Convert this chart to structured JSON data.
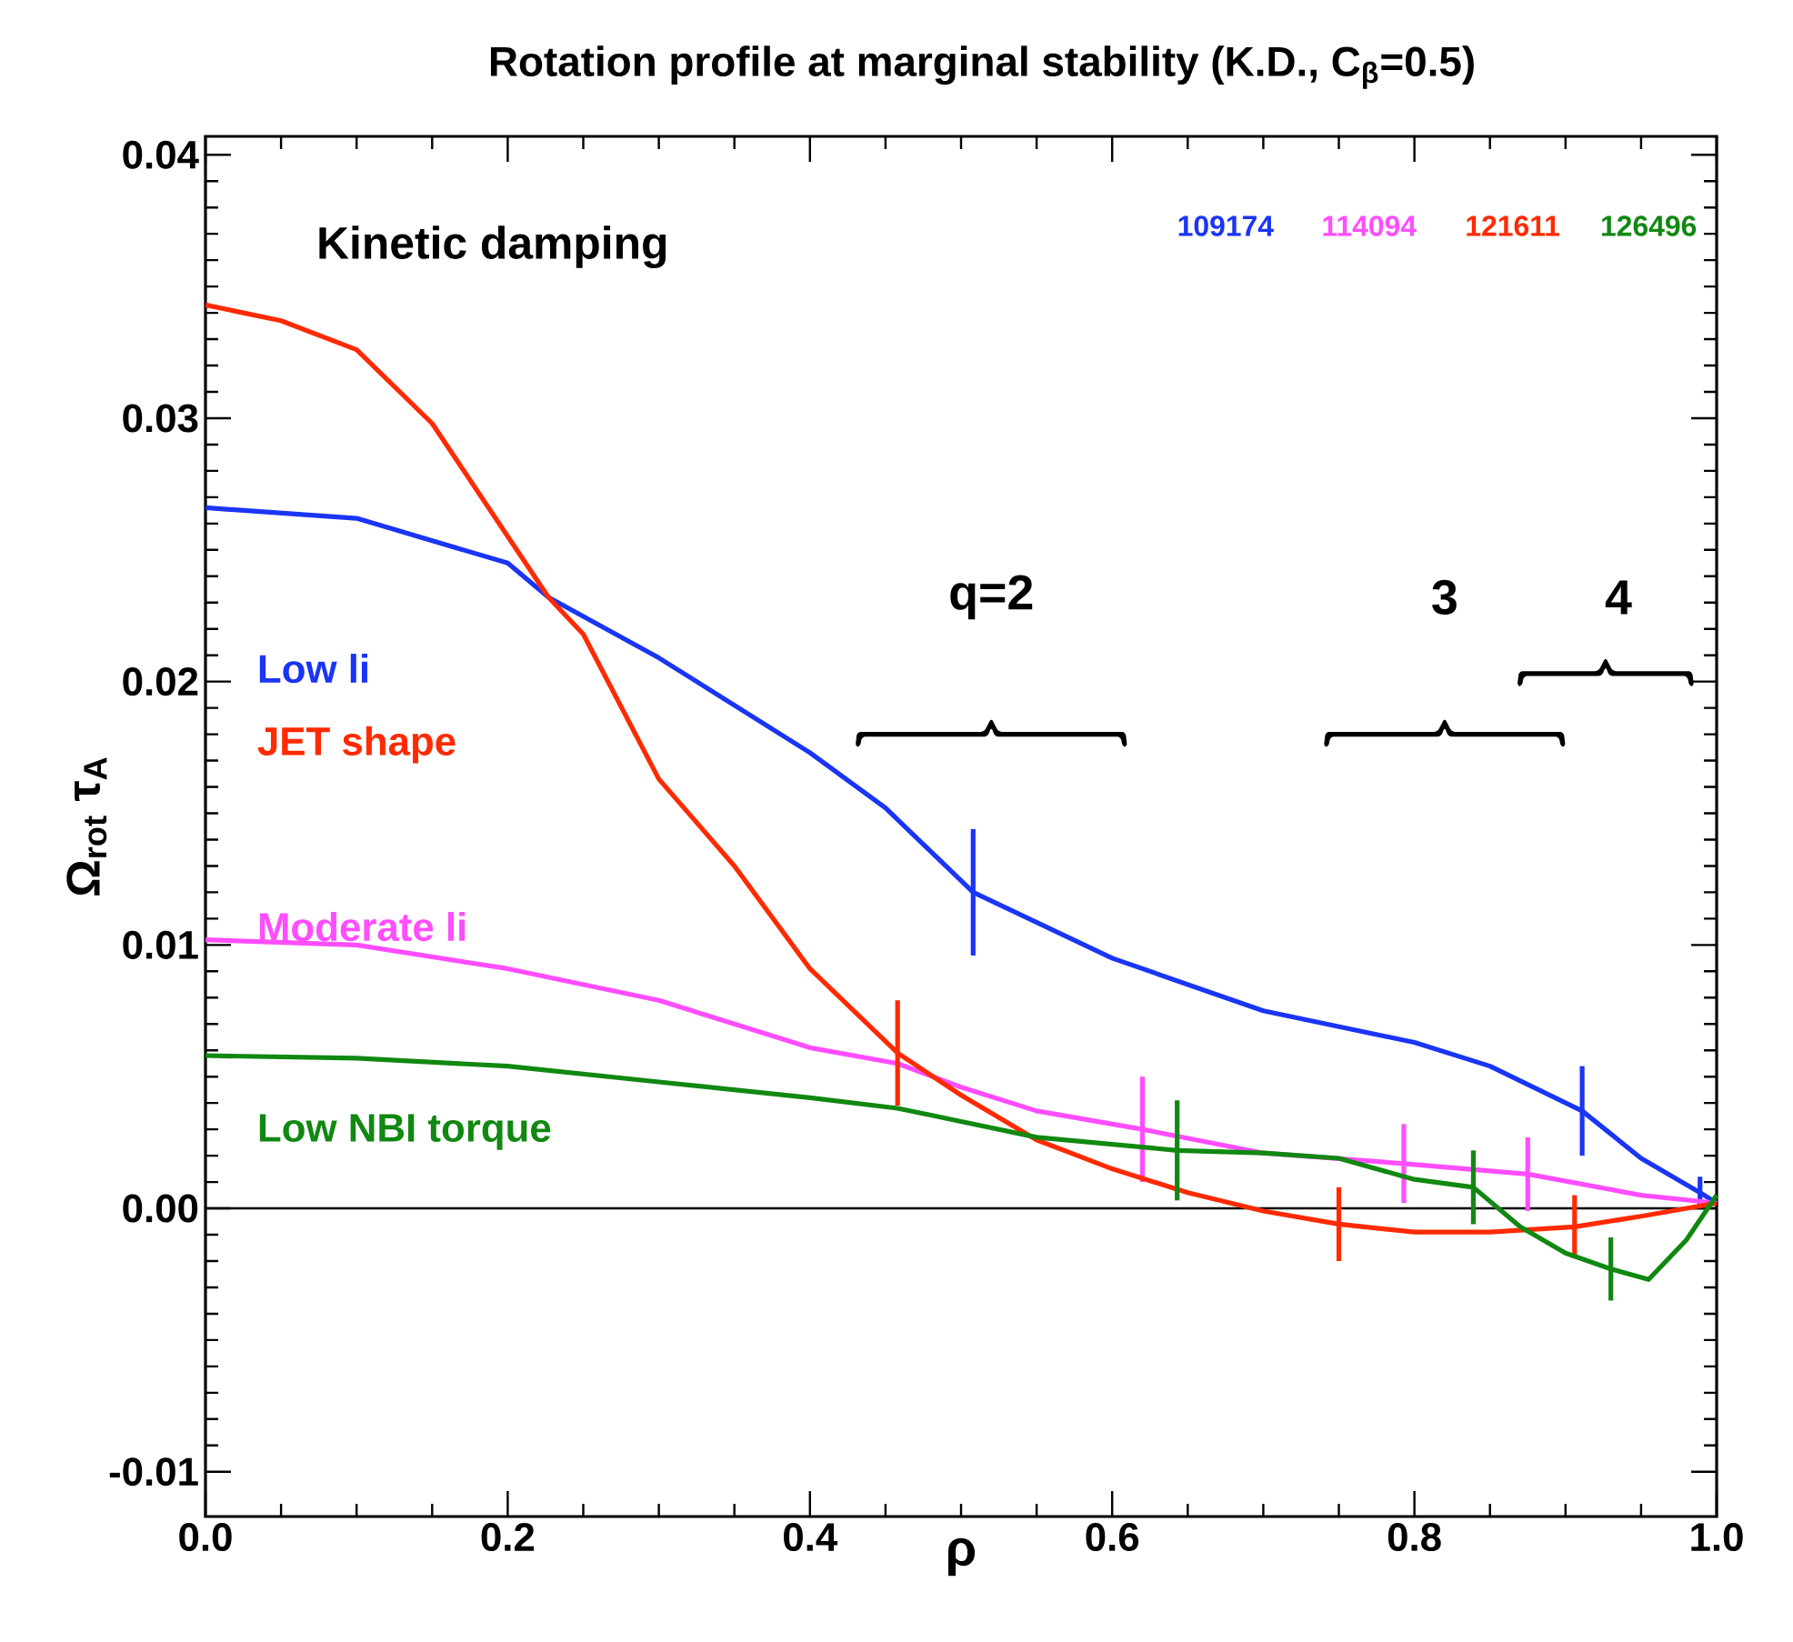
{
  "chart_data": {
    "type": "line",
    "title": "Rotation profile at marginal stability (K.D., C$_{β}$=0.5)",
    "xlabel": "ρ",
    "ylabel": "Ω$_{rot}$  τ$_{A}$",
    "xlim": [
      0.0,
      1.0
    ],
    "ylim": [
      -0.0117,
      0.0407
    ],
    "xticks": [
      {
        "value": 0.0,
        "label": "0.0"
      },
      {
        "value": 0.2,
        "label": "0.2"
      },
      {
        "value": 0.4,
        "label": "0.4"
      },
      {
        "value": 0.6,
        "label": "0.6"
      },
      {
        "value": 0.8,
        "label": "0.8"
      },
      {
        "value": 1.0,
        "label": "1.0"
      }
    ],
    "yticks": [
      {
        "value": -0.01,
        "label": "-0.01"
      },
      {
        "value": 0.0,
        "label": "0.00"
      },
      {
        "value": 0.01,
        "label": "0.01"
      },
      {
        "value": 0.02,
        "label": "0.02"
      },
      {
        "value": 0.03,
        "label": "0.03"
      },
      {
        "value": 0.04,
        "label": "0.04"
      }
    ],
    "series": [
      {
        "name": "Low li",
        "color": "#1a35f5",
        "x": [
          0,
          0.1,
          0.2,
          0.227,
          0.3,
          0.4,
          0.45,
          0.508,
          0.6,
          0.7,
          0.8,
          0.85,
          0.911,
          0.95,
          0.989,
          1.0
        ],
        "values": [
          0.0266,
          0.0262,
          0.0245,
          0.0232,
          0.0209,
          0.0173,
          0.0152,
          0.012,
          0.0095,
          0.0075,
          0.0063,
          0.0054,
          0.0037,
          0.0019,
          0.0006,
          0.0002
        ],
        "errors": [
          null,
          null,
          null,
          null,
          null,
          null,
          null,
          0.0024,
          null,
          null,
          null,
          null,
          0.0017,
          null,
          0.0006,
          null
        ]
      },
      {
        "name": "Moderate li",
        "color": "#ff4dff",
        "x": [
          0,
          0.1,
          0.2,
          0.3,
          0.4,
          0.458,
          0.5,
          0.55,
          0.62,
          0.7,
          0.793,
          0.875,
          0.95,
          1.0
        ],
        "values": [
          0.0102,
          0.01,
          0.0091,
          0.0079,
          0.0061,
          0.0055,
          0.0046,
          0.0037,
          0.003,
          0.0021,
          0.0017,
          0.0013,
          0.0005,
          0.0002
        ],
        "errors": [
          null,
          null,
          null,
          null,
          null,
          null,
          null,
          null,
          0.002,
          null,
          0.0015,
          0.0014,
          null,
          null
        ]
      },
      {
        "name": "JET shape",
        "color": "#ff2a00",
        "x": [
          0,
          0.05,
          0.1,
          0.15,
          0.227,
          0.25,
          0.3,
          0.35,
          0.4,
          0.458,
          0.5,
          0.55,
          0.6,
          0.65,
          0.7,
          0.75,
          0.8,
          0.85,
          0.906,
          0.95,
          1.0
        ],
        "values": [
          0.0343,
          0.0337,
          0.0326,
          0.0298,
          0.0232,
          0.0218,
          0.0163,
          0.013,
          0.0091,
          0.0059,
          0.0043,
          0.0026,
          0.0015,
          0.0006,
          -0.0001,
          -0.0006,
          -0.0009,
          -0.0009,
          -0.0007,
          -0.0003,
          0.0002
        ],
        "errors": [
          null,
          null,
          null,
          null,
          null,
          null,
          null,
          null,
          null,
          0.002,
          null,
          null,
          null,
          null,
          null,
          0.0014,
          null,
          null,
          0.0012,
          null,
          null
        ]
      },
      {
        "name": "Low NBI torque",
        "color": "#118811",
        "x": [
          0,
          0.1,
          0.2,
          0.3,
          0.4,
          0.458,
          0.5,
          0.55,
          0.643,
          0.7,
          0.75,
          0.8,
          0.839,
          0.87,
          0.9,
          0.93,
          0.955,
          0.98,
          1.0
        ],
        "values": [
          0.0058,
          0.0057,
          0.0054,
          0.0048,
          0.0042,
          0.0038,
          0.0033,
          0.0027,
          0.0022,
          0.0021,
          0.0019,
          0.0011,
          0.0008,
          -0.0007,
          -0.0017,
          -0.0023,
          -0.0027,
          -0.0012,
          0.0005
        ],
        "errors": [
          null,
          null,
          null,
          null,
          null,
          null,
          null,
          null,
          0.0019,
          null,
          null,
          null,
          0.0014,
          null,
          null,
          0.0012,
          null,
          null,
          null
        ]
      }
    ],
    "ref_lines": [
      {
        "axis": "y",
        "value": 0,
        "color": "#000000"
      }
    ],
    "annotations": [
      "Kinetic damping",
      "109174",
      "114094",
      "121611",
      "126496",
      "q=2",
      "3",
      "4"
    ]
  }
}
